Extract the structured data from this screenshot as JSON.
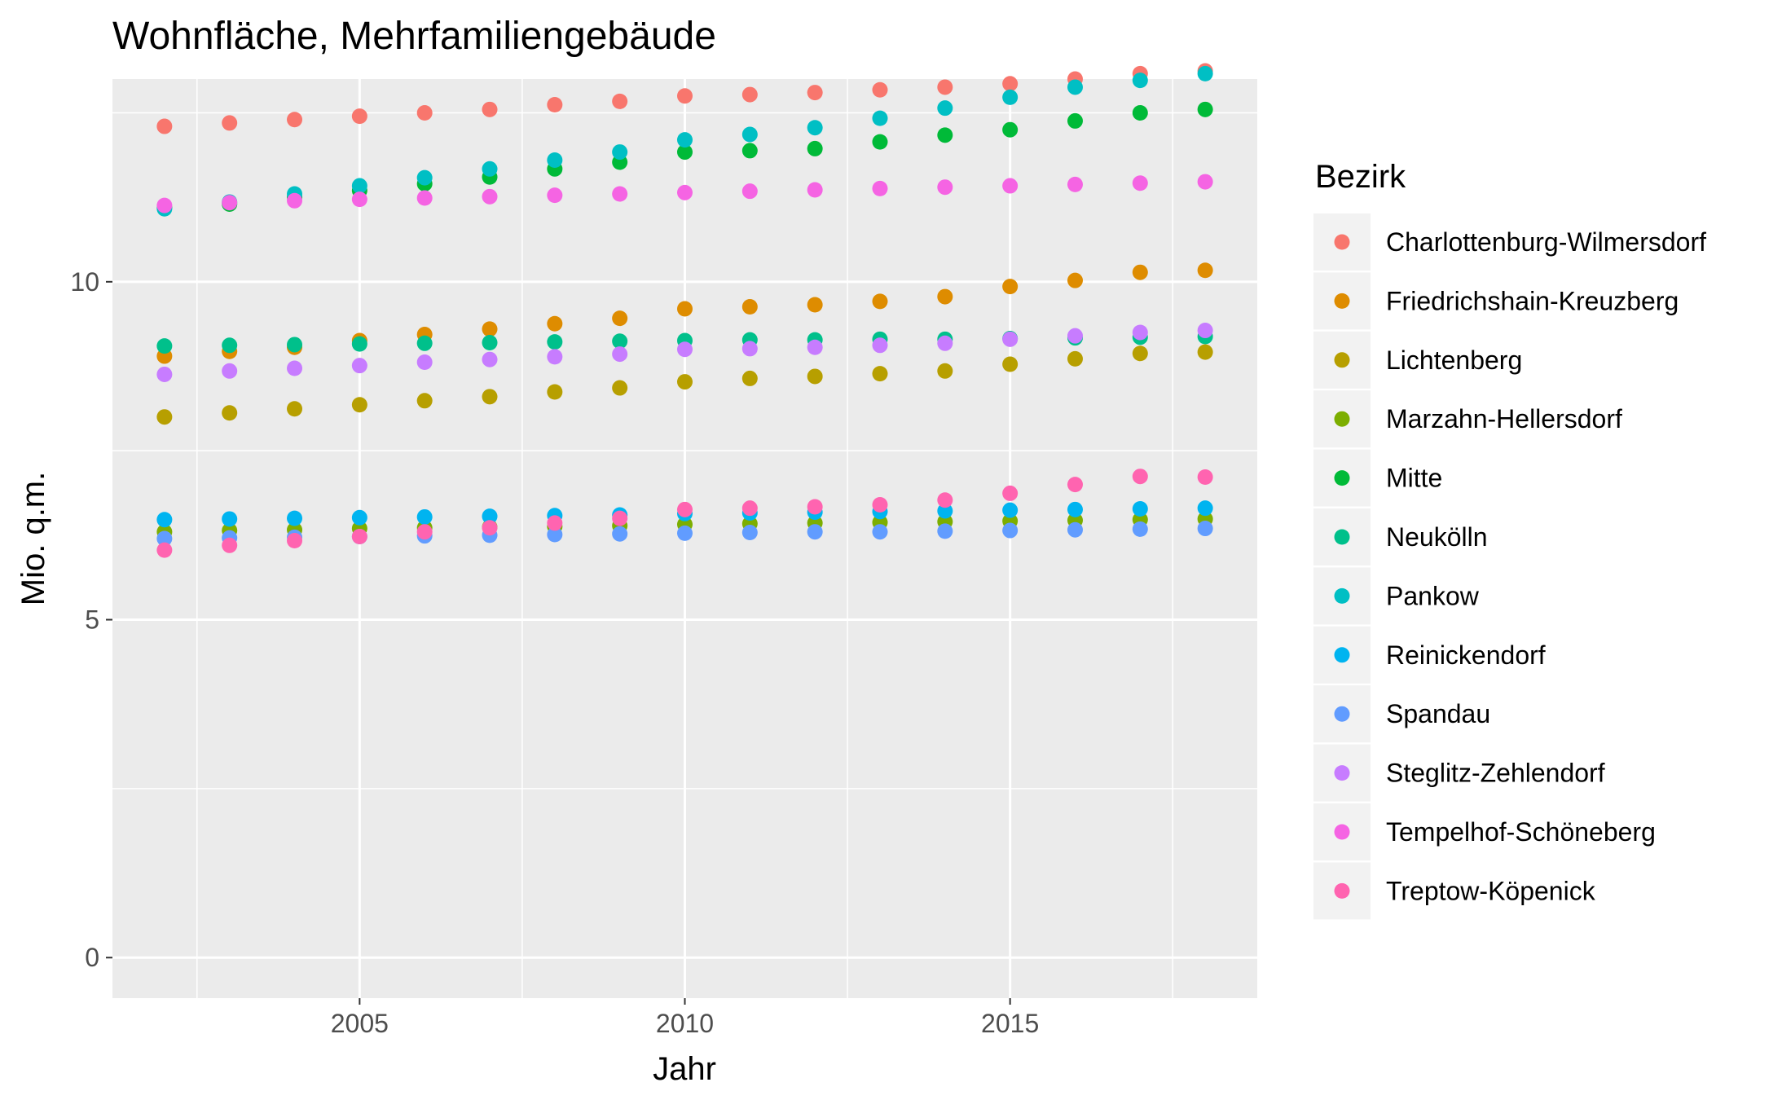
{
  "chart_data": {
    "type": "scatter",
    "title": "Wohnfläche, Mehrfamiliengebäude",
    "xlabel": "Jahr",
    "ylabel": "Mio. q.m.",
    "xlim": [
      2001.2,
      2018.8
    ],
    "ylim": [
      -0.6,
      13.0
    ],
    "x_ticks": [
      2005,
      2010,
      2015
    ],
    "y_ticks": [
      0,
      5,
      10
    ],
    "grid": true,
    "legend": {
      "title": "Bezirk",
      "placement": "right"
    },
    "x": [
      2002,
      2003,
      2004,
      2005,
      2006,
      2007,
      2008,
      2009,
      2010,
      2011,
      2012,
      2013,
      2014,
      2015,
      2016,
      2017,
      2018
    ],
    "series": [
      {
        "name": "Charlottenburg-Wilmersdorf",
        "color": "#F8766D",
        "values": [
          12.3,
          12.35,
          12.4,
          12.45,
          12.5,
          12.55,
          12.62,
          12.67,
          12.75,
          12.77,
          12.8,
          12.84,
          12.88,
          12.93,
          13.0,
          13.08,
          13.12
        ]
      },
      {
        "name": "Friedrichshain-Kreuzberg",
        "color": "#DE8C00",
        "values": [
          8.9,
          8.97,
          9.03,
          9.13,
          9.22,
          9.3,
          9.38,
          9.46,
          9.6,
          9.63,
          9.66,
          9.71,
          9.78,
          9.93,
          10.02,
          10.14,
          10.17
        ]
      },
      {
        "name": "Lichtenberg",
        "color": "#B79F00",
        "values": [
          8.0,
          8.06,
          8.12,
          8.18,
          8.24,
          8.3,
          8.37,
          8.43,
          8.52,
          8.57,
          8.6,
          8.64,
          8.68,
          8.78,
          8.86,
          8.94,
          8.96
        ]
      },
      {
        "name": "Marzahn-Hellersdorf",
        "color": "#7CAE00",
        "values": [
          6.3,
          6.32,
          6.33,
          6.35,
          6.36,
          6.37,
          6.38,
          6.39,
          6.41,
          6.42,
          6.43,
          6.44,
          6.45,
          6.46,
          6.47,
          6.48,
          6.49
        ]
      },
      {
        "name": "Mitte",
        "color": "#00BA38",
        "values": [
          11.1,
          11.15,
          11.25,
          11.35,
          11.45,
          11.55,
          11.67,
          11.77,
          11.92,
          11.94,
          11.97,
          12.07,
          12.17,
          12.25,
          12.38,
          12.5,
          12.55
        ]
      },
      {
        "name": "Neukölln",
        "color": "#00C08B",
        "values": [
          9.05,
          9.06,
          9.07,
          9.08,
          9.09,
          9.1,
          9.11,
          9.12,
          9.13,
          9.14,
          9.14,
          9.15,
          9.15,
          9.16,
          9.17,
          9.18,
          9.19
        ]
      },
      {
        "name": "Pankow",
        "color": "#00BFC4",
        "values": [
          11.08,
          11.18,
          11.3,
          11.42,
          11.54,
          11.67,
          11.8,
          11.92,
          12.1,
          12.18,
          12.28,
          12.42,
          12.57,
          12.73,
          12.88,
          12.98,
          13.08
        ]
      },
      {
        "name": "Reinickendorf",
        "color": "#00B4F0",
        "values": [
          6.48,
          6.49,
          6.5,
          6.51,
          6.52,
          6.53,
          6.54,
          6.55,
          6.57,
          6.58,
          6.59,
          6.6,
          6.61,
          6.62,
          6.63,
          6.64,
          6.65
        ]
      },
      {
        "name": "Spandau",
        "color": "#619CFF",
        "values": [
          6.2,
          6.21,
          6.22,
          6.23,
          6.24,
          6.25,
          6.26,
          6.27,
          6.28,
          6.29,
          6.3,
          6.3,
          6.31,
          6.32,
          6.33,
          6.34,
          6.35
        ]
      },
      {
        "name": "Steglitz-Zehlendorf",
        "color": "#C77CFF",
        "values": [
          8.63,
          8.68,
          8.72,
          8.76,
          8.81,
          8.85,
          8.89,
          8.93,
          9.0,
          9.01,
          9.03,
          9.06,
          9.09,
          9.15,
          9.2,
          9.25,
          9.28
        ]
      },
      {
        "name": "Tempelhof-Schöneberg",
        "color": "#F564E3",
        "values": [
          11.13,
          11.17,
          11.2,
          11.22,
          11.24,
          11.26,
          11.28,
          11.3,
          11.32,
          11.34,
          11.36,
          11.38,
          11.4,
          11.42,
          11.44,
          11.46,
          11.48
        ]
      },
      {
        "name": "Treptow-Köpenick",
        "color": "#FF64B0",
        "values": [
          6.03,
          6.1,
          6.17,
          6.23,
          6.3,
          6.36,
          6.43,
          6.5,
          6.63,
          6.65,
          6.67,
          6.7,
          6.77,
          6.87,
          7.0,
          7.12,
          7.11
        ]
      }
    ]
  }
}
